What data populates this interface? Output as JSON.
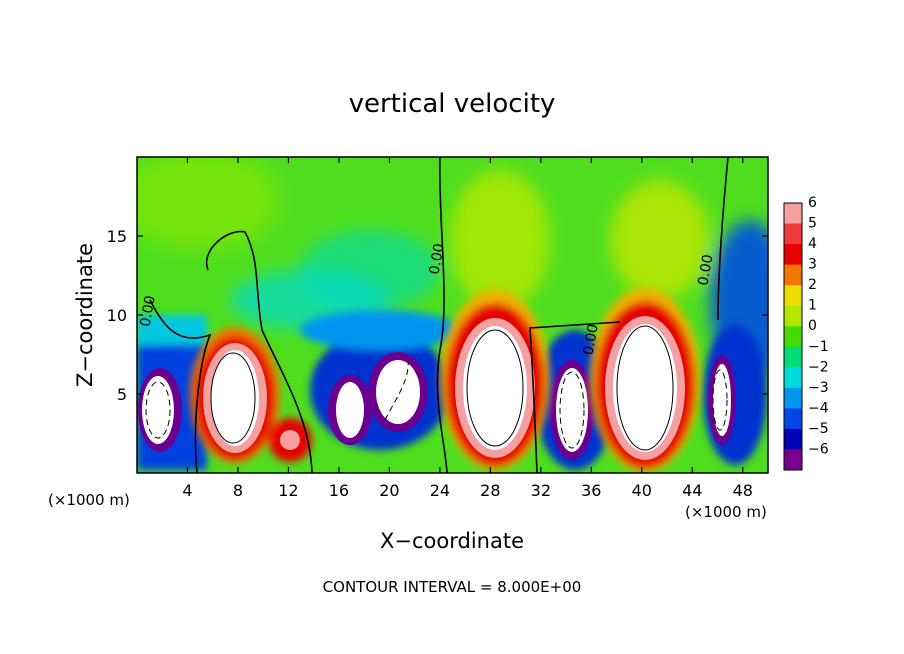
{
  "chart_data": {
    "type": "heatmap",
    "title": "vertical velocity",
    "xlabel": "X−coordinate",
    "ylabel": "Z−coordinate",
    "x_unit_left": "(×1000 m)",
    "x_unit_right": "(×1000 m)",
    "xlim": [
      0,
      50
    ],
    "ylim": [
      0,
      20
    ],
    "x_ticks": [
      4,
      8,
      12,
      16,
      20,
      24,
      28,
      32,
      36,
      40,
      44,
      48
    ],
    "y_ticks": [
      5,
      10,
      15
    ],
    "colorbar": {
      "levels": [
        "6",
        "5",
        "4",
        "3",
        "2",
        "1",
        "0",
        "−1",
        "−2",
        "−3",
        "−4",
        "−5",
        "−6"
      ],
      "colors": [
        "#f4a0a0",
        "#f03c3c",
        "#e60000",
        "#f07800",
        "#f0dc00",
        "#b4e600",
        "#46dc00",
        "#00dc78",
        "#00dcdc",
        "#0096f0",
        "#0046e6",
        "#0000b4",
        "#78008c"
      ]
    },
    "contour_labels": [
      {
        "text": "0.00",
        "x": 1.2,
        "y": 10.2
      },
      {
        "text": "0.00",
        "x": 24.1,
        "y": 13.5
      },
      {
        "text": "0.00",
        "x": 36.3,
        "y": 8.4
      },
      {
        "text": "0.00",
        "x": 45.4,
        "y": 12.8
      }
    ],
    "footer": "CONTOUR INTERVAL = 8.000E+00"
  }
}
